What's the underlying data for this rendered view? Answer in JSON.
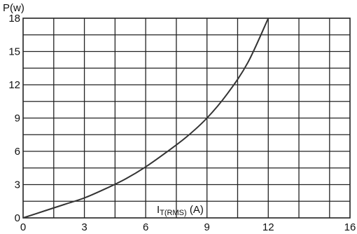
{
  "chart_data": {
    "type": "line",
    "title": "",
    "xlabel": {
      "main": "I",
      "sub": "T(RMS)",
      "unit": " (A)"
    },
    "ylabel": "P(w)",
    "xlim": [
      0,
      16
    ],
    "ylim": [
      0,
      18
    ],
    "x_ticks": [
      0,
      3,
      6,
      9,
      12,
      16
    ],
    "y_ticks": [
      0,
      3,
      6,
      9,
      12,
      15,
      18
    ],
    "grid": true,
    "series": [
      {
        "color": "#333333",
        "x": [
          0,
          1,
          2,
          3,
          4,
          5,
          6,
          7,
          8,
          9,
          10,
          11,
          12
        ],
        "y": [
          0,
          0.6,
          1.2,
          1.8,
          2.6,
          3.5,
          4.6,
          5.9,
          7.3,
          9.0,
          11.2,
          14.0,
          18.0
        ]
      }
    ]
  }
}
